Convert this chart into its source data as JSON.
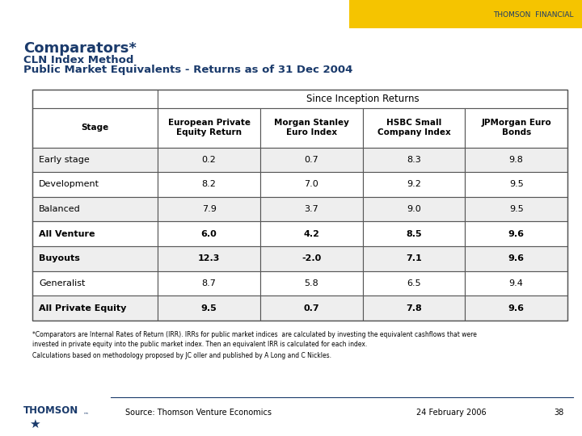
{
  "title_line1": "Comparators*",
  "title_line2": "CLN Index Method",
  "title_line3": "Public Market Equivalents - Returns as of 31 Dec 2004",
  "thomson_text": "THOMSON  FINANCIAL",
  "header_group": "Since Inception Returns",
  "col_headers": [
    "Stage",
    "European Private\nEquity Return",
    "Morgan Stanley\nEuro Index",
    "HSBC Small\nCompany Index",
    "JPMorgan Euro\nBonds"
  ],
  "rows": [
    [
      "Early stage",
      "0.2",
      "0.7",
      "8.3",
      "9.8"
    ],
    [
      "Development",
      "8.2",
      "7.0",
      "9.2",
      "9.5"
    ],
    [
      "Balanced",
      "7.9",
      "3.7",
      "9.0",
      "9.5"
    ],
    [
      "All Venture",
      "6.0",
      "4.2",
      "8.5",
      "9.6"
    ],
    [
      "Buyouts",
      "12.3",
      "-2.0",
      "7.1",
      "9.6"
    ],
    [
      "Generalist",
      "8.7",
      "5.8",
      "6.5",
      "9.4"
    ],
    [
      "All Private Equity",
      "9.5",
      "0.7",
      "7.8",
      "9.6"
    ]
  ],
  "bold_rows": [
    3,
    4,
    6
  ],
  "footnote1": "*Comparators are Internal Rates of Return (IRR). IRRs for public market indices  are calculated by investing the equivalent cashflows that were",
  "footnote2": "invested in private equity into the public market index. Then an equivalent IRR is calculated for each index.",
  "footnote3": "Calculations based on methodology proposed by JC oller and published by A Long and C Nickles.",
  "source_text": "Source: Thomson Venture Economics",
  "date_text": "24 February 2006",
  "page_num": "38",
  "bg_color": "#ffffff",
  "title_color": "#1a3a6b",
  "thomson_color": "#1a3a6b",
  "table_border_color": "#555555",
  "yellow_bar_color": "#f5c400",
  "row_colors": [
    "#eeeeee",
    "#ffffff",
    "#eeeeee",
    "#ffffff",
    "#eeeeee",
    "#ffffff",
    "#eeeeee"
  ]
}
